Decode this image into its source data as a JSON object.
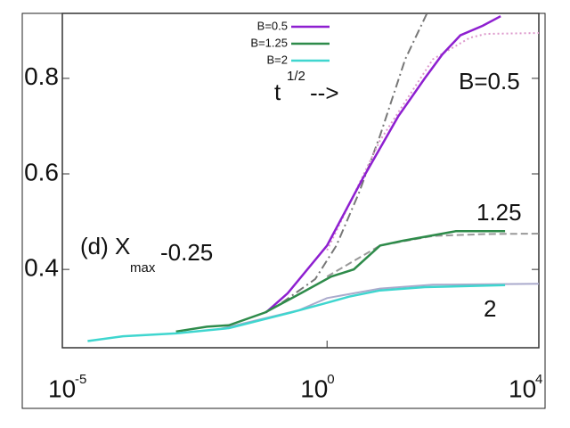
{
  "chart_data": {
    "type": "line",
    "log_x": true,
    "xlim": [
      1e-05,
      10000
    ],
    "ylim": [
      0.236,
      0.936
    ],
    "xticks": [
      {
        "value": 1e-05,
        "label": "10",
        "exponent": "-5"
      },
      {
        "value": 1,
        "label": "10",
        "exponent": "0"
      },
      {
        "value": 10000,
        "label": "10",
        "exponent": "4"
      }
    ],
    "yticks": [
      0.4,
      0.6,
      0.8
    ],
    "legend": "top",
    "series": [
      {
        "name": "B=0.5",
        "color": "#8e1fd0",
        "x": [
          0.07,
          0.18,
          1,
          4.7,
          22,
          70,
          150,
          330,
          870,
          1900
        ],
        "values": [
          0.31,
          0.35,
          0.45,
          0.59,
          0.72,
          0.8,
          0.85,
          0.89,
          0.91,
          0.93
        ]
      },
      {
        "name": "B=1.25",
        "color": "#2e8b4a",
        "x": [
          0.0014,
          0.0054,
          0.014,
          0.068,
          0.32,
          1.2,
          3.2,
          10,
          27,
          270,
          2300
        ],
        "values": [
          0.27,
          0.28,
          0.283,
          0.31,
          0.35,
          0.385,
          0.4,
          0.45,
          0.46,
          0.48,
          0.48
        ]
      },
      {
        "name": "B=2",
        "color": "#3fd6cf",
        "x": [
          3e-05,
          0.00014,
          0.0014,
          0.014,
          0.21,
          1,
          2.6,
          10,
          70,
          2300
        ],
        "values": [
          0.25,
          0.26,
          0.266,
          0.277,
          0.31,
          0.33,
          0.343,
          0.356,
          0.363,
          0.367
        ]
      }
    ],
    "reference_curves": [
      {
        "color": "#777777",
        "dash": "10 4 2 4",
        "x": [
          0.14,
          0.6,
          1.5,
          4,
          10,
          30,
          80
        ],
        "values": [
          0.33,
          0.38,
          0.45,
          0.56,
          0.68,
          0.84,
          0.94
        ]
      },
      {
        "color": "#dd99cc",
        "dash": "2 3",
        "x": [
          1,
          10,
          100,
          500,
          1000,
          10000
        ],
        "values": [
          0.44,
          0.67,
          0.84,
          0.885,
          0.893,
          0.895
        ]
      },
      {
        "color": "#999999",
        "dash": "8 4",
        "x": [
          1,
          10,
          100,
          1000,
          10000
        ],
        "values": [
          0.385,
          0.45,
          0.47,
          0.474,
          0.475
        ]
      },
      {
        "color": "#aaaacc",
        "dash": "",
        "x": [
          0.01,
          0.3,
          1,
          10,
          100,
          10000
        ],
        "values": [
          0.276,
          0.315,
          0.34,
          0.36,
          0.368,
          0.37
        ]
      }
    ],
    "annotations": {
      "growth": {
        "base": "t",
        "exponent": "1/2",
        "arrow": "-->"
      },
      "b05": "B=0.5",
      "b125": "1.25",
      "b2": "2",
      "panel": {
        "prefix": "(d) X",
        "subscript": "max",
        "suffix": "-0.25"
      }
    }
  }
}
